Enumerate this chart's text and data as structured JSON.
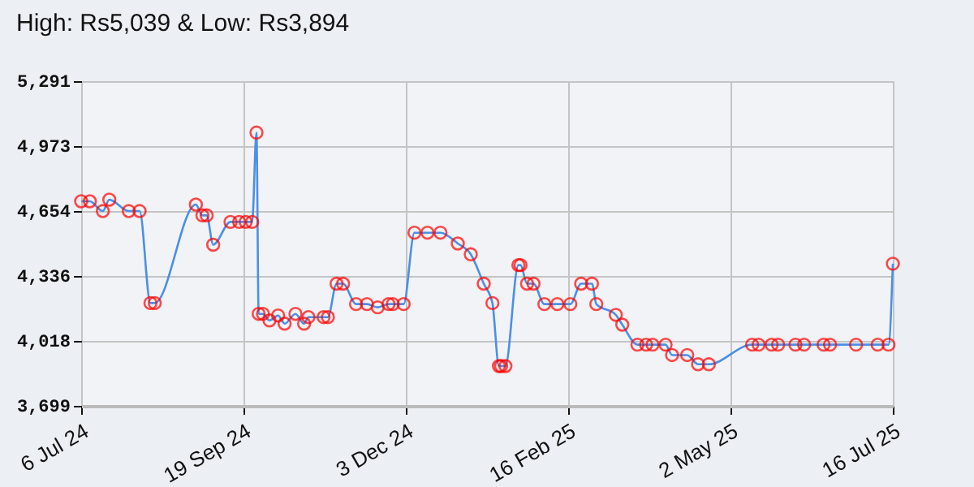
{
  "chart_data": {
    "type": "line",
    "title": "High: Rs5,039 & Low: Rs3,894",
    "x": [
      "2024-07-06",
      "2024-07-10",
      "2024-07-16",
      "2024-07-19",
      "2024-07-28",
      "2024-08-02",
      "2024-08-07",
      "2024-08-09",
      "2024-08-28",
      "2024-08-31",
      "2024-09-02",
      "2024-09-05",
      "2024-09-13",
      "2024-09-17",
      "2024-09-20",
      "2024-09-23",
      "2024-09-25",
      "2024-09-26",
      "2024-09-28",
      "2024-10-01",
      "2024-10-05",
      "2024-10-08",
      "2024-10-13",
      "2024-10-17",
      "2024-10-19",
      "2024-10-26",
      "2024-10-28",
      "2024-11-01",
      "2024-11-04",
      "2024-11-10",
      "2024-11-15",
      "2024-11-20",
      "2024-11-25",
      "2024-11-27",
      "2024-12-02",
      "2024-12-07",
      "2024-12-13",
      "2024-12-19",
      "2024-12-27",
      "2025-01-02",
      "2025-01-08",
      "2025-01-12",
      "2025-01-15",
      "2025-01-16",
      "2025-01-18",
      "2025-01-24",
      "2025-01-25",
      "2025-01-28",
      "2025-01-31",
      "2025-02-05",
      "2025-02-11",
      "2025-02-17",
      "2025-02-22",
      "2025-02-27",
      "2025-03-01",
      "2025-03-10",
      "2025-03-13",
      "2025-03-20",
      "2025-03-24",
      "2025-03-27",
      "2025-04-02",
      "2025-04-05",
      "2025-04-12",
      "2025-04-17",
      "2025-04-22",
      "2025-05-12",
      "2025-05-15",
      "2025-05-21",
      "2025-05-24",
      "2025-06-01",
      "2025-06-05",
      "2025-06-14",
      "2025-06-17",
      "2025-06-29",
      "2025-07-09",
      "2025-07-14",
      "2025-07-16"
    ],
    "series": [
      {
        "color": "#4a8fe7",
        "colors": [
          "#ff0000",
          "#ff0000",
          "#ff0000",
          "#ff0000",
          "#ff0000",
          "#ff0000",
          "#ff0000",
          "#ff0000",
          "#ff0000",
          "#ff0000",
          "#ff0000",
          "#ff0000",
          "#ff0000",
          "#ff0000",
          "#ff0000",
          "#ff0000",
          "#ff0000",
          "#ff0000",
          "#ff0000",
          "#ff0000",
          "#ff0000",
          "#ff0000",
          "#ff0000",
          "#ff0000",
          "#ff0000",
          "#ff0000",
          "#ff0000",
          "#ff0000",
          "#ff0000",
          "#ff0000",
          "#ff0000",
          "#ff0000",
          "#ff0000",
          "#ff0000",
          "#ff0000",
          "#ff0000",
          "#ff0000",
          "#ff0000",
          "#ff0000",
          "#ff0000",
          "#ff0000",
          "#ff0000",
          "#ff0000",
          "#ff0000",
          "#ff0000",
          "#ff0000",
          "#ff0000",
          "#ff0000",
          "#ff0000",
          "#ff0000",
          "#ff0000",
          "#ff0000",
          "#ff0000",
          "#ff0000",
          "#ff0000",
          "#ff0000",
          "#ff0000",
          "#ff0000",
          "#ff0000",
          "#ff0000",
          "#ff0000",
          "#ff0000",
          "#ff0000",
          "#ff0000",
          "#ff0000",
          "#ff0000",
          "#ff0000",
          "#ff0000",
          "#ff0000",
          "#ff0000",
          "#ff0000",
          "#ff0000",
          "#ff0000",
          "#ff0000",
          "#ff0000",
          "#ff0000",
          "#ff0000"
        ],
        "values": [
          4702,
          4702,
          4654,
          4710,
          4654,
          4654,
          4203,
          4203,
          4686,
          4633,
          4633,
          4489,
          4601,
          4601,
          4601,
          4601,
          5039,
          4150,
          4150,
          4118,
          4142,
          4102,
          4150,
          4102,
          4134,
          4134,
          4134,
          4298,
          4298,
          4198,
          4198,
          4182,
          4198,
          4198,
          4198,
          4548,
          4548,
          4548,
          4495,
          4442,
          4298,
          4203,
          3894,
          3894,
          3894,
          4389,
          4389,
          4298,
          4298,
          4198,
          4198,
          4198,
          4298,
          4298,
          4198,
          4145,
          4097,
          3999,
          3999,
          3999,
          3999,
          3948,
          3948,
          3903,
          3903,
          3999,
          3999,
          3999,
          3999,
          3999,
          3999,
          3999,
          3999,
          3999,
          3999,
          3999,
          4396
        ]
      }
    ],
    "xlim": [
      "2024-07-06",
      "2025-07-16"
    ],
    "xticks": [
      {
        "value": "2024-07-06",
        "label": "6 Jul 24"
      },
      {
        "value": "2024-09-19",
        "label": "19 Sep 24"
      },
      {
        "value": "2024-12-03",
        "label": "3 Dec 24"
      },
      {
        "value": "2025-02-16",
        "label": "16 Feb 25"
      },
      {
        "value": "2025-05-02",
        "label": "2 May 25"
      },
      {
        "value": "2025-07-16",
        "label": "16 Jul 25"
      }
    ],
    "ylim": [
      3699,
      5291
    ],
    "yticks": [
      {
        "value": 3699,
        "label": "3,699"
      },
      {
        "value": 4018,
        "label": "4,018"
      },
      {
        "value": 4336,
        "label": "4,336"
      },
      {
        "value": 4654,
        "label": "4,654"
      },
      {
        "value": 4973,
        "label": "4,973"
      },
      {
        "value": 5291,
        "label": "5,291"
      }
    ],
    "grid": true,
    "marker": "circle",
    "line_style": "solid"
  }
}
